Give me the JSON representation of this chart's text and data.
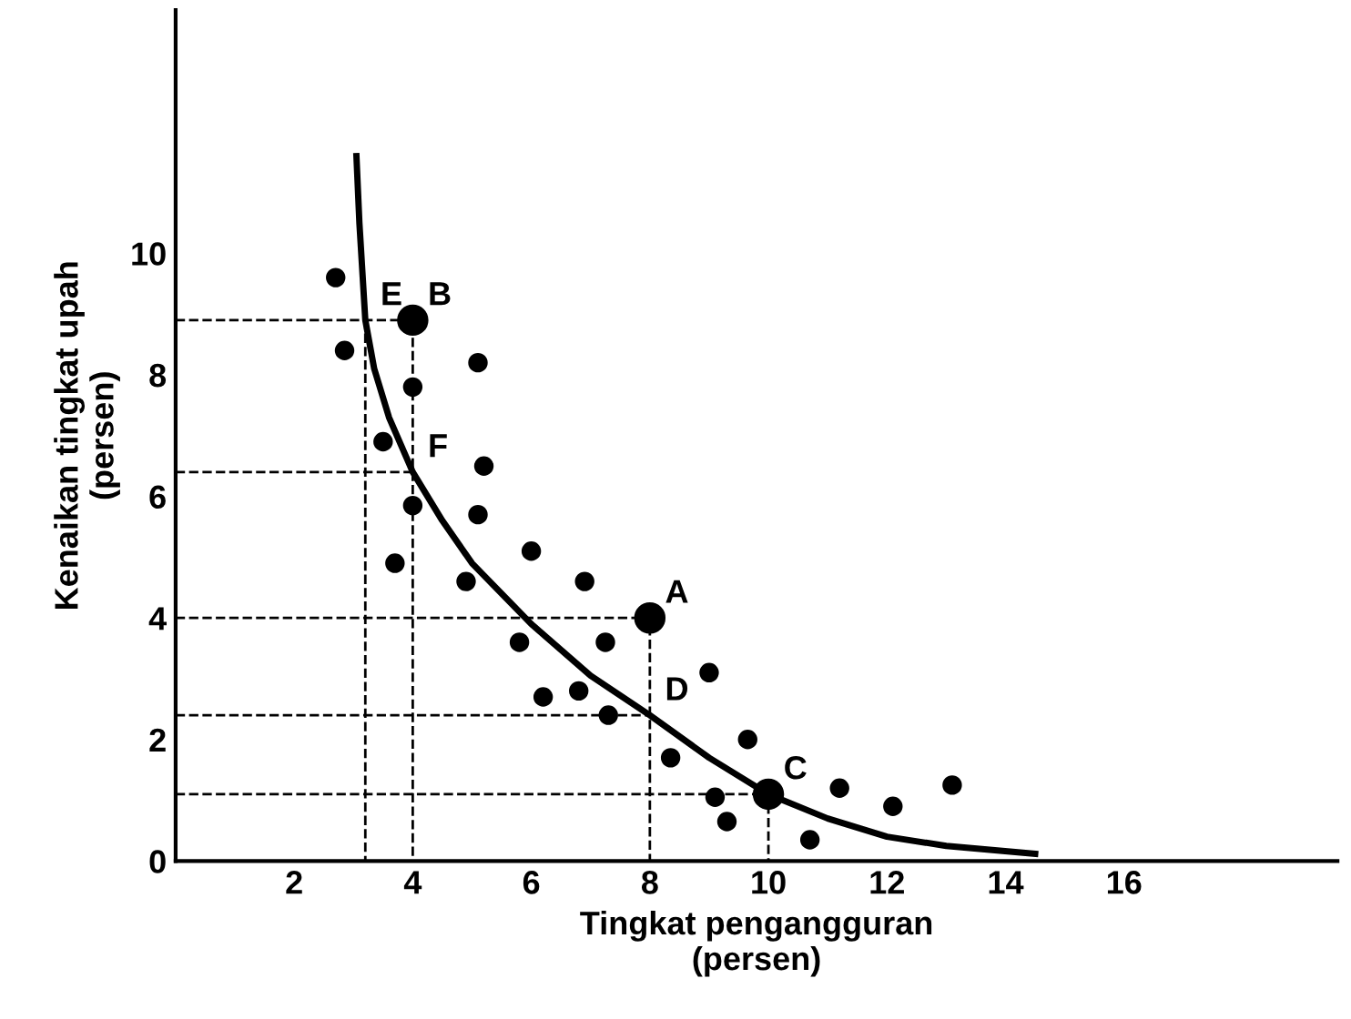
{
  "chart_data": {
    "type": "scatter",
    "xlabel": "Tingkat pengangguran\n(persen)",
    "ylabel": "Kenaikan tingkat upah\n(persen)",
    "xlim": [
      0,
      19.6
    ],
    "ylim": [
      0,
      14
    ],
    "xticks": [
      2,
      4,
      6,
      8,
      10,
      12,
      14,
      16
    ],
    "yticks": [
      0,
      2,
      4,
      6,
      8,
      10
    ],
    "grid": false,
    "legend": false,
    "series": [
      {
        "color": "#000000",
        "marker": "circle",
        "x": [
          2.7,
          2.85,
          4,
          5.1,
          3.5,
          4,
          5.2,
          3.7,
          5.1,
          4.9,
          6.0,
          6.9,
          5.8,
          6.2,
          7.25,
          6.8,
          7.3,
          9.0,
          8.35,
          9.65,
          9.1,
          9.3,
          11.2,
          10.7,
          12.1,
          13.1
        ],
        "values": [
          9.6,
          8.4,
          7.8,
          8.2,
          6.9,
          5.85,
          6.5,
          4.9,
          5.7,
          4.6,
          5.1,
          4.6,
          3.6,
          2.7,
          3.6,
          2.8,
          2.4,
          3.1,
          1.7,
          2.0,
          1.05,
          0.65,
          1.2,
          0.35,
          0.9,
          1.25
        ]
      },
      {
        "type": "bubble",
        "color": "#000000",
        "x": [
          4,
          8,
          10
        ],
        "values": [
          8.9,
          4,
          1.1
        ],
        "sizes": [
          1,
          1,
          1
        ]
      },
      {
        "type": "line",
        "color": "#000000",
        "line_style": "solid",
        "x": [
          3.05,
          3.1,
          3.2,
          3.35,
          3.6,
          4,
          4.5,
          5,
          6,
          7,
          8,
          9,
          10,
          11,
          12,
          13,
          14.5
        ],
        "values": [
          11.6,
          10.5,
          8.9,
          8.1,
          7.3,
          6.4,
          5.6,
          4.9,
          3.9,
          3.05,
          2.4,
          1.7,
          1.1,
          0.7,
          0.4,
          0.25,
          0.12
        ]
      },
      {
        "type": "line",
        "color": "#000000",
        "line_style": "dashed",
        "x": [
          0,
          4,
          4
        ],
        "values": [
          8.9,
          8.9,
          0
        ]
      },
      {
        "type": "line",
        "color": "#000000",
        "line_style": "dashed",
        "x": [
          3.2,
          3.2
        ],
        "values": [
          8.9,
          0
        ]
      },
      {
        "type": "line",
        "color": "#000000",
        "line_style": "dashed",
        "x": [
          0,
          4
        ],
        "values": [
          6.4,
          6.4
        ]
      },
      {
        "type": "line",
        "color": "#000000",
        "line_style": "dashed",
        "x": [
          0,
          8,
          8
        ],
        "values": [
          4,
          4,
          0
        ]
      },
      {
        "type": "line",
        "color": "#000000",
        "line_style": "dashed",
        "x": [
          0,
          8
        ],
        "values": [
          2.4,
          2.4
        ]
      },
      {
        "type": "line",
        "color": "#000000",
        "line_style": "dashed",
        "x": [
          0,
          10,
          10
        ],
        "values": [
          1.1,
          1.1,
          0
        ]
      }
    ],
    "annotations": [
      {
        "text": "E",
        "x": 3.2,
        "y": 8.9
      },
      {
        "text": "B",
        "x": 4,
        "y": 8.9
      },
      {
        "text": "F",
        "x": 4,
        "y": 6.4
      },
      {
        "text": "A",
        "x": 8,
        "y": 4
      },
      {
        "text": "D",
        "x": 8,
        "y": 2.4
      },
      {
        "text": "C",
        "x": 10,
        "y": 1.1
      }
    ]
  }
}
